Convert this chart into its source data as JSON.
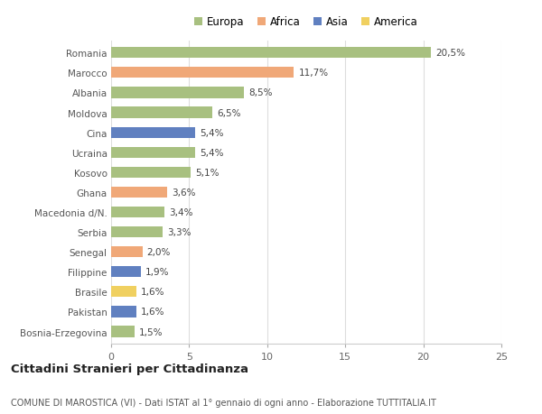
{
  "countries": [
    "Romania",
    "Marocco",
    "Albania",
    "Moldova",
    "Cina",
    "Ucraina",
    "Kosovo",
    "Ghana",
    "Macedonia d/N.",
    "Serbia",
    "Senegal",
    "Filippine",
    "Brasile",
    "Pakistan",
    "Bosnia-Erzegovina"
  ],
  "values": [
    20.5,
    11.7,
    8.5,
    6.5,
    5.4,
    5.4,
    5.1,
    3.6,
    3.4,
    3.3,
    2.0,
    1.9,
    1.6,
    1.6,
    1.5
  ],
  "labels": [
    "20,5%",
    "11,7%",
    "8,5%",
    "6,5%",
    "5,4%",
    "5,4%",
    "5,1%",
    "3,6%",
    "3,4%",
    "3,3%",
    "2,0%",
    "1,9%",
    "1,6%",
    "1,6%",
    "1,5%"
  ],
  "continents": [
    "Europa",
    "Africa",
    "Europa",
    "Europa",
    "Asia",
    "Europa",
    "Europa",
    "Africa",
    "Europa",
    "Europa",
    "Africa",
    "Asia",
    "America",
    "Asia",
    "Europa"
  ],
  "colors": {
    "Europa": "#a8c080",
    "Africa": "#f0a878",
    "Asia": "#6080c0",
    "America": "#f0d060"
  },
  "legend_order": [
    "Europa",
    "Africa",
    "Asia",
    "America"
  ],
  "title": "Cittadini Stranieri per Cittadinanza",
  "subtitle": "COMUNE DI MAROSTICA (VI) - Dati ISTAT al 1° gennaio di ogni anno - Elaborazione TUTTITALIA.IT",
  "xlim": [
    0,
    25
  ],
  "xticks": [
    0,
    5,
    10,
    15,
    20,
    25
  ],
  "background_color": "#ffffff",
  "bar_height": 0.55,
  "grid_color": "#dddddd"
}
